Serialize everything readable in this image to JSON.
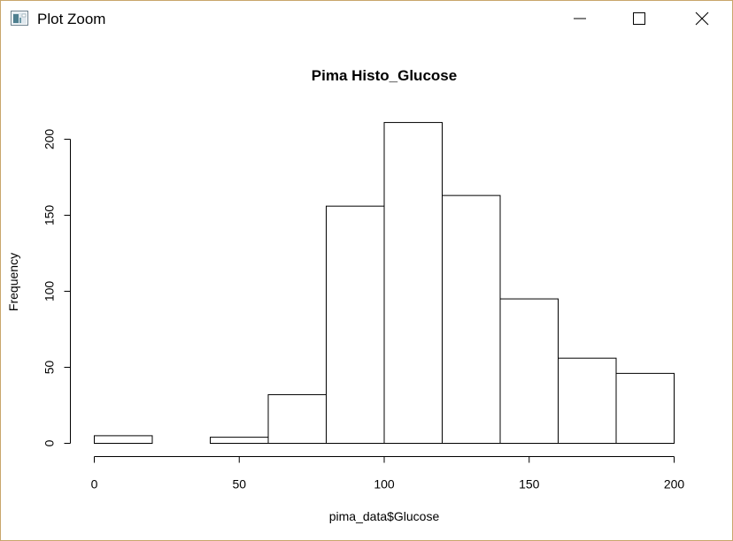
{
  "window": {
    "title": "Plot Zoom",
    "icon": "plot-window-icon",
    "controls": {
      "minimize": "minimize-icon",
      "maximize": "maximize-icon",
      "close": "close-icon"
    }
  },
  "chart_data": {
    "type": "bar",
    "title": "Pima Histo_Glucose",
    "xlabel": "pima_data$Glucose",
    "ylabel": "Frequency",
    "bins": [
      {
        "start": 0,
        "end": 20,
        "count": 5
      },
      {
        "start": 20,
        "end": 40,
        "count": 0
      },
      {
        "start": 40,
        "end": 60,
        "count": 4
      },
      {
        "start": 60,
        "end": 80,
        "count": 32
      },
      {
        "start": 80,
        "end": 100,
        "count": 156
      },
      {
        "start": 100,
        "end": 120,
        "count": 211
      },
      {
        "start": 120,
        "end": 140,
        "count": 163
      },
      {
        "start": 140,
        "end": 160,
        "count": 95
      },
      {
        "start": 160,
        "end": 180,
        "count": 56
      },
      {
        "start": 180,
        "end": 200,
        "count": 46
      }
    ],
    "xlim": [
      0,
      200
    ],
    "ylim": [
      0,
      211
    ],
    "x_ticks": [
      "0",
      "50",
      "100",
      "150",
      "200"
    ],
    "y_ticks": [
      "0",
      "50",
      "100",
      "150",
      "200"
    ],
    "grid": false,
    "bar_fill": "#ffffff",
    "bar_stroke": "#000000"
  }
}
